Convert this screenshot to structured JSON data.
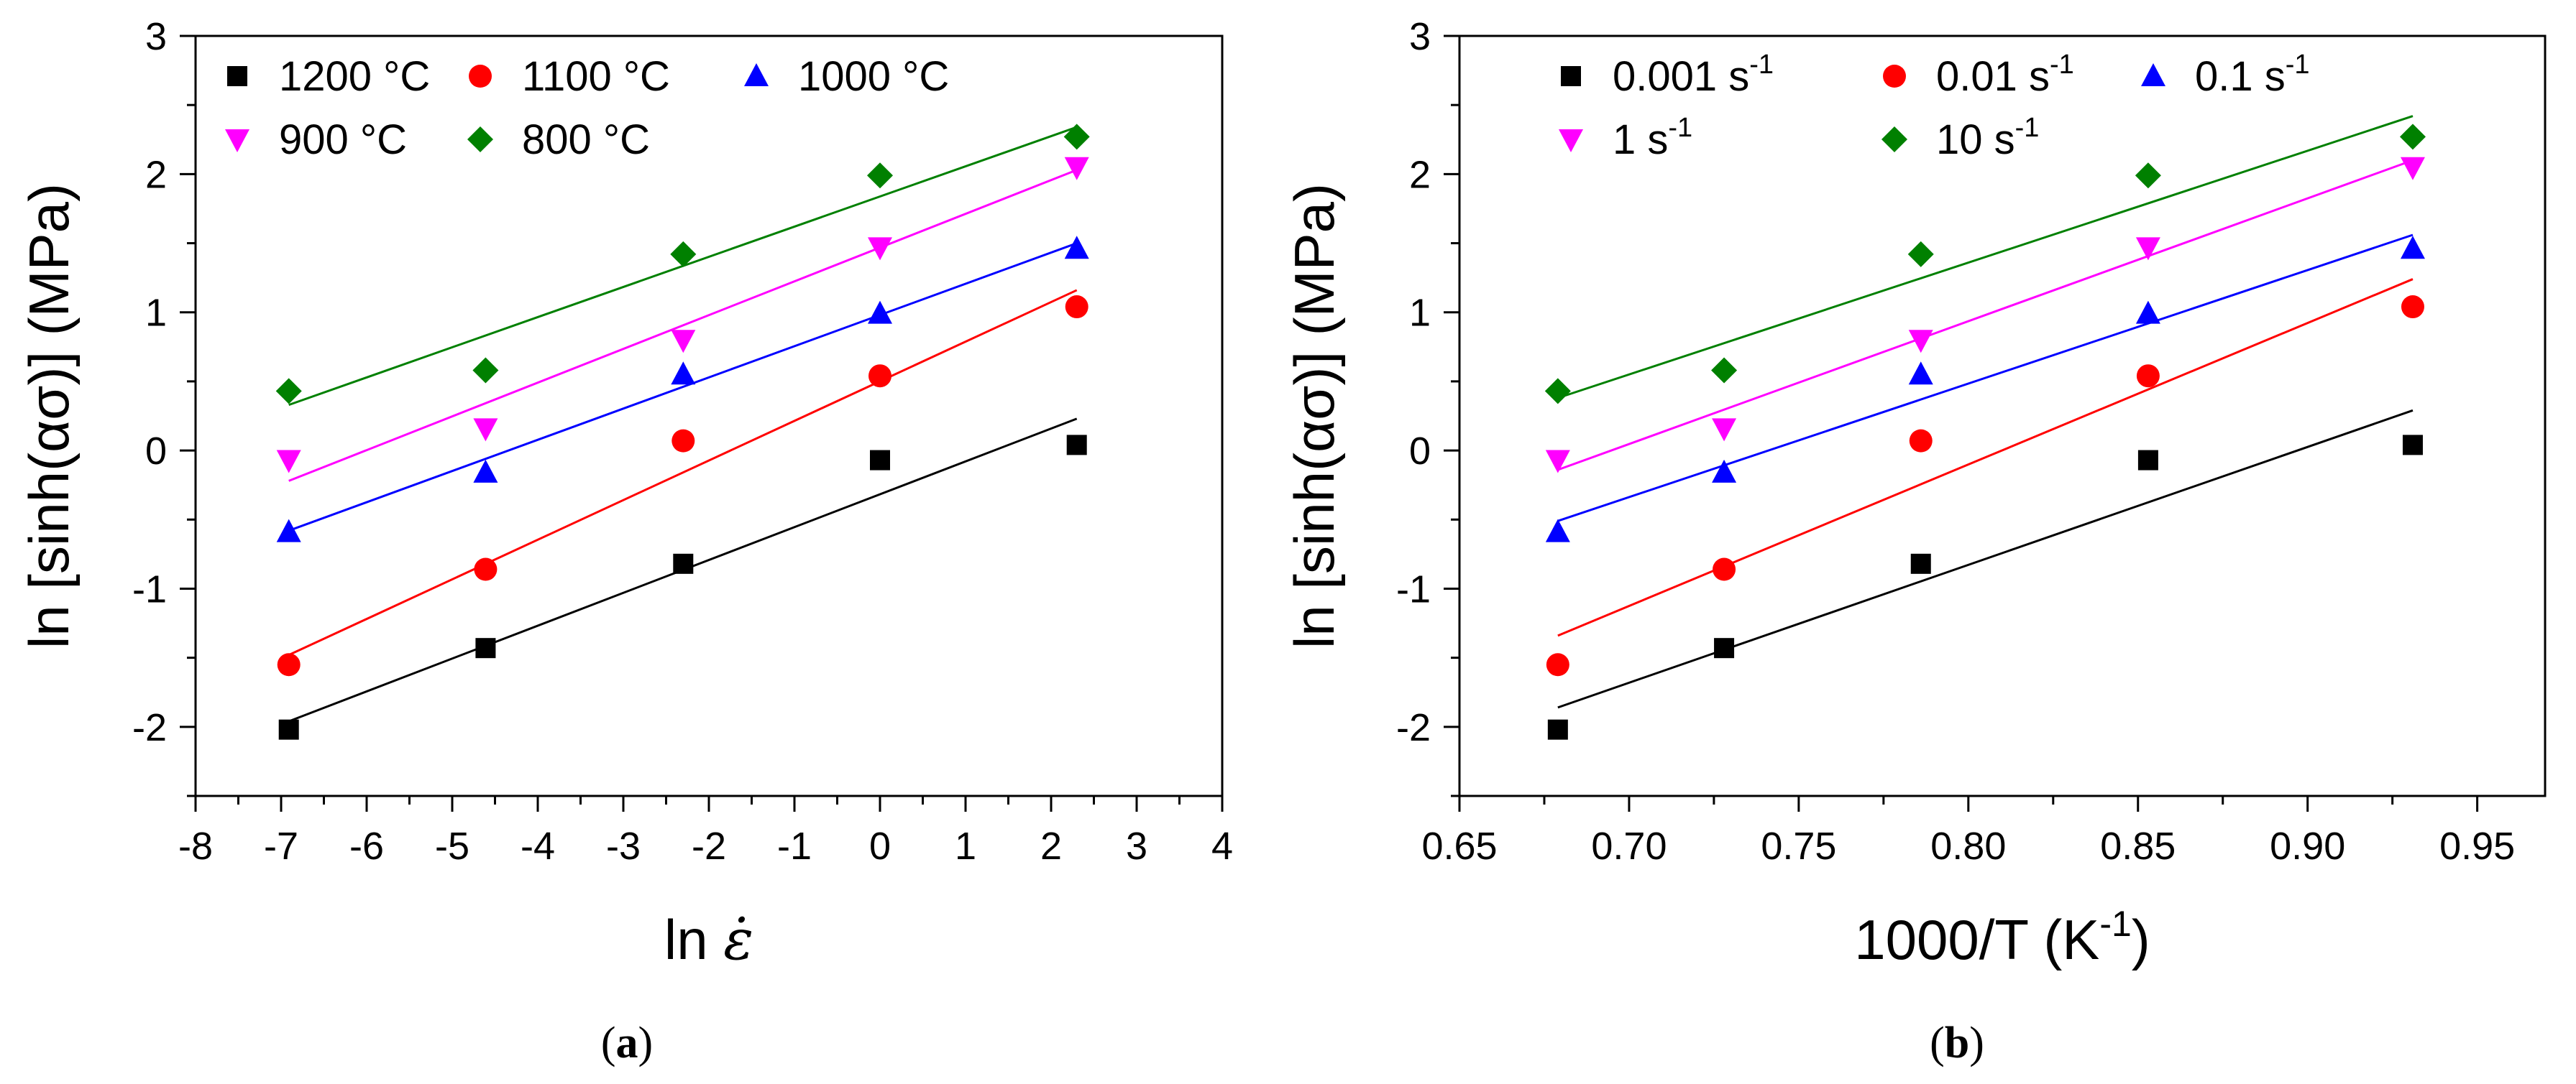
{
  "figure": {
    "panels": [
      {
        "caption_open": "(",
        "caption_letter": "a",
        "caption_close": ")"
      },
      {
        "caption_open": "(",
        "caption_letter": "b",
        "caption_close": ")"
      }
    ]
  },
  "chart_data": [
    {
      "type": "scatter",
      "panel": "a",
      "title": "",
      "xlabel_prefix": "ln ",
      "xlabel_symbol": "ε̇",
      "ylabel": "ln [sinh(ασ)] (MPa)",
      "xlim": [
        -8,
        4
      ],
      "ylim": [
        -2.5,
        3
      ],
      "xticks": [
        -8,
        -7,
        -6,
        -5,
        -4,
        -3,
        -2,
        -1,
        0,
        1,
        2,
        3,
        4
      ],
      "yticks": [
        -2,
        -1,
        0,
        1,
        2,
        3
      ],
      "x": [
        -6.91,
        -4.61,
        -2.3,
        0,
        2.3
      ],
      "legend_rows": [
        [
          0,
          1,
          2
        ],
        [
          3,
          4
        ]
      ],
      "series": [
        {
          "name": "1200 °C",
          "label": "1200 °C",
          "marker": "square",
          "color": "#000000",
          "values": [
            -2.02,
            -1.43,
            -0.82,
            -0.07,
            0.04
          ],
          "fit": [
            [
              -6.91,
              -1.96
            ],
            [
              2.3,
              0.23
            ]
          ]
        },
        {
          "name": "1100 °C",
          "label": "1100 °C",
          "marker": "circle",
          "color": "#ff0000",
          "values": [
            -1.55,
            -0.86,
            0.07,
            0.54,
            1.04
          ],
          "fit": [
            [
              -6.91,
              -1.48
            ],
            [
              2.3,
              1.16
            ]
          ]
        },
        {
          "name": "1000 °C",
          "label": "1000 °C",
          "marker": "triangle-up",
          "color": "#0000ff",
          "values": [
            -0.59,
            -0.16,
            0.55,
            0.99,
            1.46
          ],
          "fit": [
            [
              -6.91,
              -0.58
            ],
            [
              2.3,
              1.5
            ]
          ]
        },
        {
          "name": "900 °C",
          "label": "900 °C",
          "marker": "triangle-down",
          "color": "#ff00ff",
          "values": [
            -0.07,
            0.16,
            0.8,
            1.47,
            2.05
          ],
          "fit": [
            [
              -6.91,
              -0.22
            ],
            [
              2.3,
              2.03
            ]
          ]
        },
        {
          "name": "800 °C",
          "label": "800 °C",
          "marker": "diamond",
          "color": "#008000",
          "values": [
            0.43,
            0.58,
            1.42,
            1.99,
            2.27
          ],
          "fit": [
            [
              -6.91,
              0.33
            ],
            [
              2.3,
              2.34
            ]
          ]
        }
      ]
    },
    {
      "type": "scatter",
      "panel": "b",
      "title": "",
      "xlabel_main": "1000/T (K",
      "xlabel_sup": "-1",
      "xlabel_close": ")",
      "ylabel": "ln [sinh(ασ)] (MPa)",
      "xlim": [
        0.65,
        0.97
      ],
      "ylim": [
        -2.5,
        3
      ],
      "xticks": [
        0.65,
        0.7,
        0.75,
        0.8,
        0.85,
        0.9,
        0.95
      ],
      "xtick_labels": [
        "0.65",
        "0.70",
        "0.75",
        "0.80",
        "0.85",
        "0.90",
        "0.95"
      ],
      "yticks": [
        -2,
        -1,
        0,
        1,
        2,
        3
      ],
      "x": [
        0.679,
        0.728,
        0.786,
        0.853,
        0.931
      ],
      "legend_rows": [
        [
          0,
          1,
          2
        ],
        [
          3,
          4
        ]
      ],
      "series": [
        {
          "name": "0.001 s-1",
          "label": "0.001 s",
          "label_sup": "-1",
          "marker": "square",
          "color": "#000000",
          "values": [
            -2.02,
            -1.43,
            -0.82,
            -0.07,
            0.04
          ],
          "fit": [
            [
              0.679,
              -1.86
            ],
            [
              0.931,
              0.29
            ]
          ]
        },
        {
          "name": "0.01 s-1",
          "label": "0.01 s",
          "label_sup": "-1",
          "marker": "circle",
          "color": "#ff0000",
          "values": [
            -1.55,
            -0.86,
            0.07,
            0.54,
            1.04
          ],
          "fit": [
            [
              0.679,
              -1.34
            ],
            [
              0.931,
              1.24
            ]
          ]
        },
        {
          "name": "0.1 s-1",
          "label": "0.1 s",
          "label_sup": "-1",
          "marker": "triangle-up",
          "color": "#0000ff",
          "values": [
            -0.59,
            -0.16,
            0.55,
            0.99,
            1.46
          ],
          "fit": [
            [
              0.679,
              -0.51
            ],
            [
              0.931,
              1.56
            ]
          ]
        },
        {
          "name": "1 s-1",
          "label": "1 s",
          "label_sup": "-1",
          "marker": "triangle-down",
          "color": "#ff00ff",
          "values": [
            -0.07,
            0.16,
            0.8,
            1.47,
            2.05
          ],
          "fit": [
            [
              0.679,
              -0.14
            ],
            [
              0.931,
              2.1
            ]
          ]
        },
        {
          "name": "10 s-1",
          "label": "10 s",
          "label_sup": "-1",
          "marker": "diamond",
          "color": "#008000",
          "values": [
            0.43,
            0.58,
            1.42,
            1.99,
            2.27
          ],
          "fit": [
            [
              0.679,
              0.38
            ],
            [
              0.931,
              2.42
            ]
          ]
        }
      ]
    }
  ]
}
